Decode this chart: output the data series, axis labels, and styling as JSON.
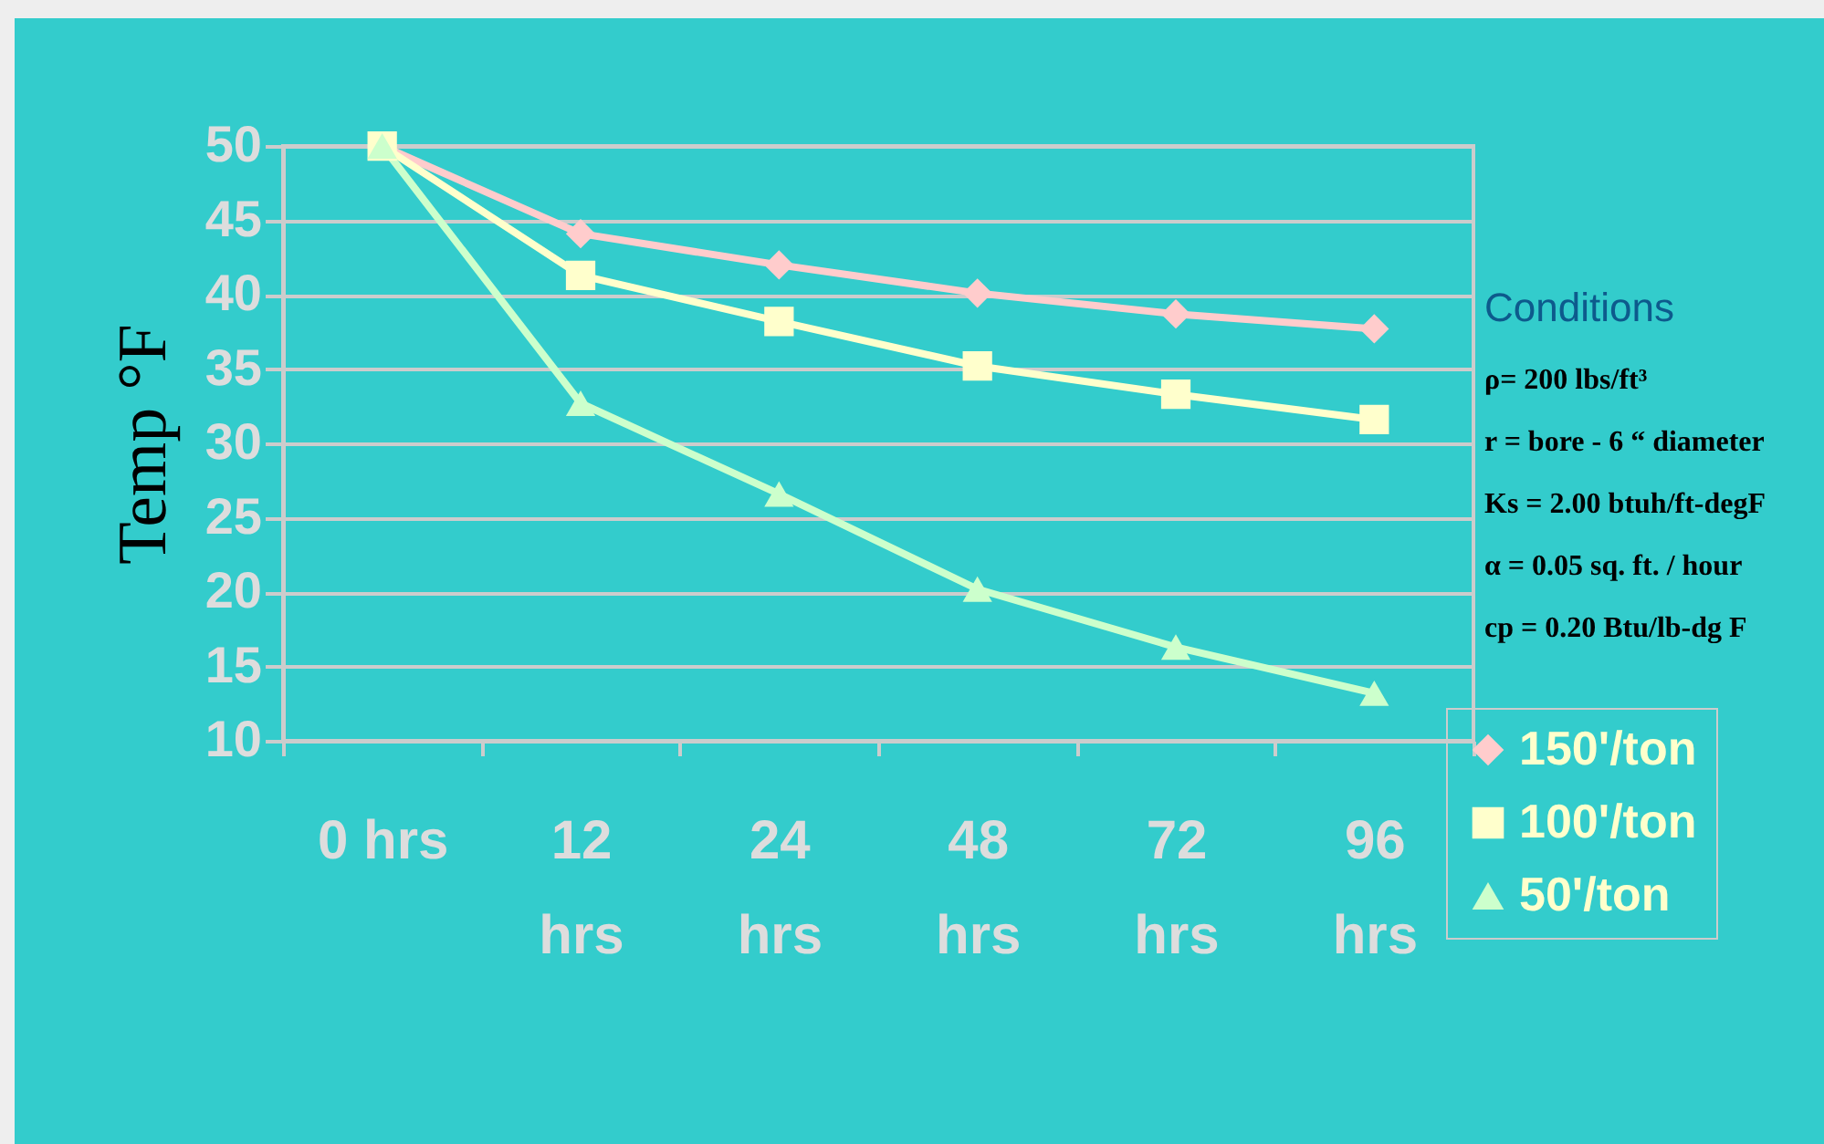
{
  "chart_data": {
    "type": "line",
    "ylabel": "Temp  °F",
    "categories": [
      "0 hrs",
      "12 hrs",
      "24 hrs",
      "48 hrs",
      "72 hrs",
      "96 hrs"
    ],
    "series": [
      {
        "name": "150'/ton",
        "color": "#ffcccc",
        "marker": "diamond",
        "values": [
          50,
          44.1,
          42,
          40.1,
          38.7,
          37.7
        ]
      },
      {
        "name": "100'/ton",
        "color": "#ffffcc",
        "marker": "square",
        "values": [
          50,
          41.3,
          38.2,
          35.2,
          33.3,
          31.6
        ]
      },
      {
        "name": "50'/ton",
        "color": "#ccffcc",
        "marker": "triangle",
        "values": [
          50,
          32.7,
          26.6,
          20.2,
          16.3,
          13.2
        ]
      }
    ],
    "ylim": [
      10,
      50
    ],
    "yticks": [
      10,
      15,
      20,
      25,
      30,
      35,
      40,
      45,
      50
    ],
    "grid": "y",
    "legend": "bottom right",
    "annotations": [
      "Conditions",
      "ρ= 200 lbs/ft³",
      "r = bore - 6 “ diameter",
      "Ks = 2.00 btuh/ft-degF",
      "α = 0.05 sq. ft. / hour",
      "cp = 0.20 Btu/lb-dg F"
    ]
  }
}
